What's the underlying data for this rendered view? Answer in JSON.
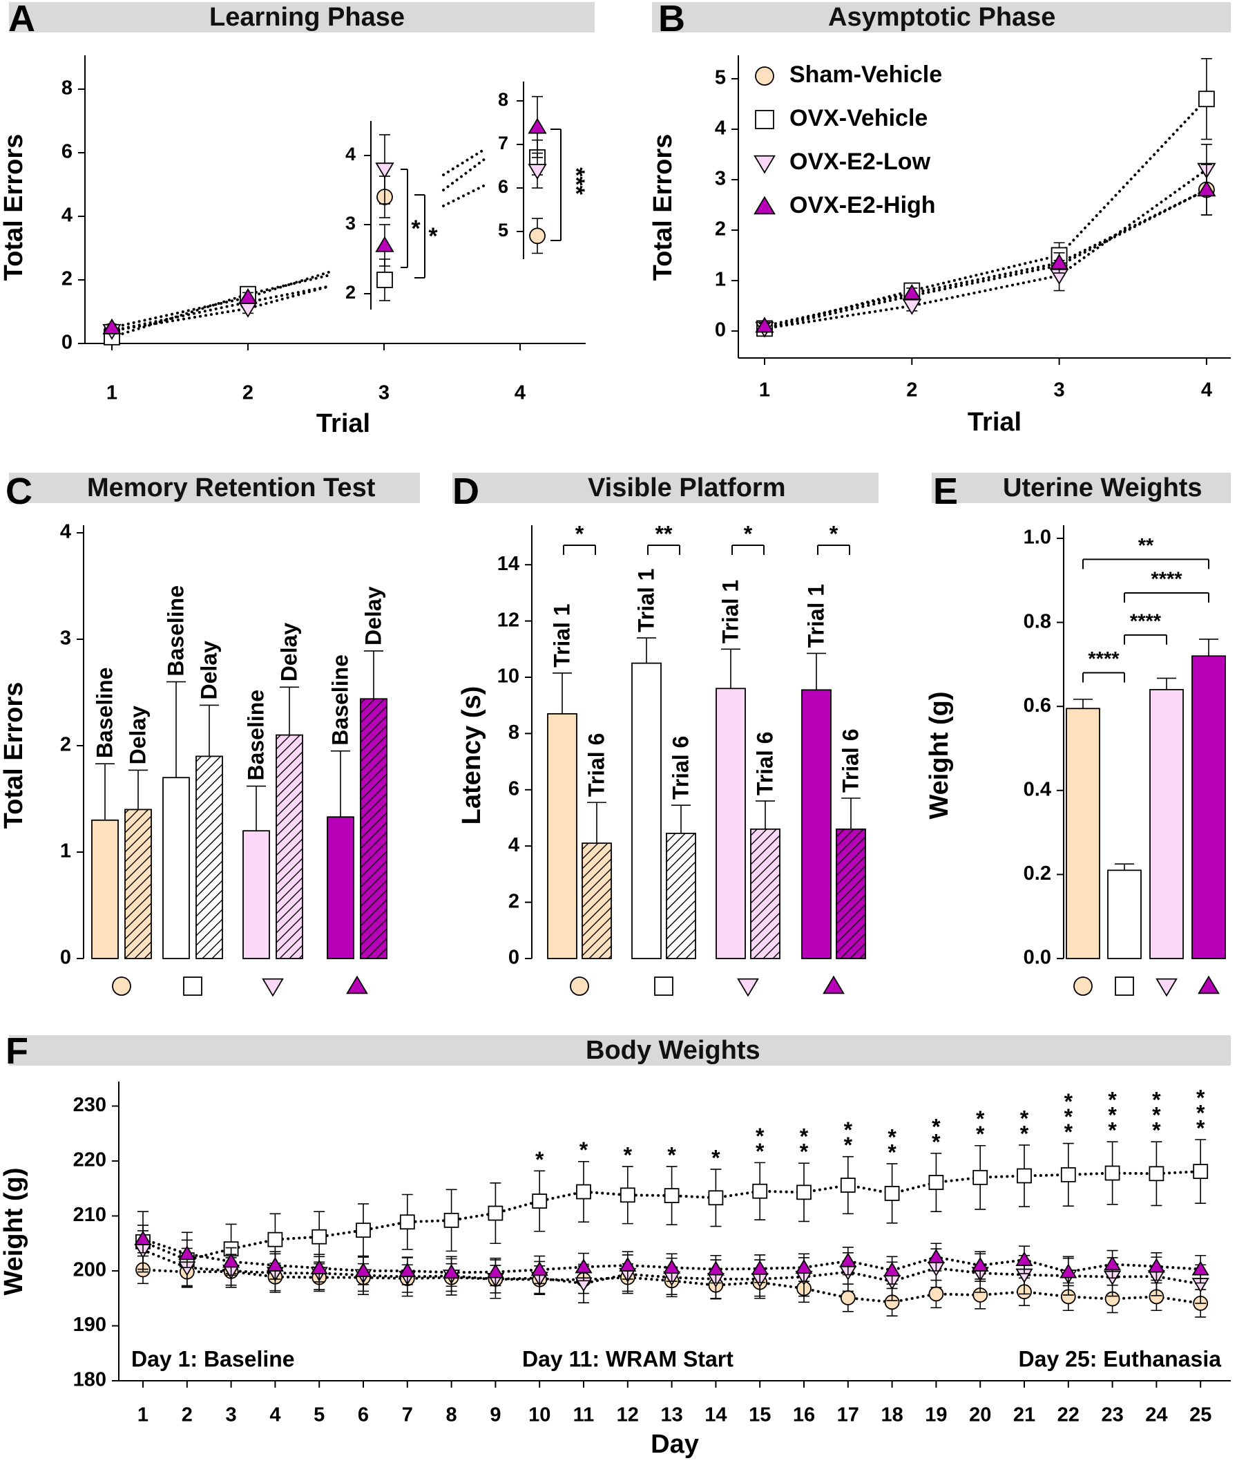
{
  "colors": {
    "sham": "#fde0bd",
    "ovx": "#ffffff",
    "low": "#fbd8f8",
    "high": "#b900b9",
    "header_bg": "#d9d9d9",
    "ink": "#000000"
  },
  "legend": {
    "items": [
      {
        "label": "Sham-Vehicle",
        "marker": "circle"
      },
      {
        "label": "OVX-Vehicle",
        "marker": "square"
      },
      {
        "label": "OVX-E2-Low",
        "marker": "triangle-down"
      },
      {
        "label": "OVX-E2-High",
        "marker": "triangle-up"
      }
    ]
  },
  "panels": {
    "a": {
      "letter": "A",
      "title": "Learning Phase"
    },
    "b": {
      "letter": "B",
      "title": "Asymptotic Phase"
    },
    "c": {
      "letter": "C",
      "title": "Memory Retention Test"
    },
    "d": {
      "letter": "D",
      "title": "Visible Platform"
    },
    "e": {
      "letter": "E",
      "title": "Uterine Weights"
    },
    "f": {
      "letter": "F",
      "title": "Body Weights"
    }
  },
  "chart_data": [
    {
      "id": "A",
      "type": "line",
      "title": "Learning Phase",
      "xlabel": "Trial",
      "ylabel": "Total Errors",
      "x": [
        1,
        2,
        3,
        4
      ],
      "ylim": [
        0,
        9
      ],
      "yticks": [
        "0",
        "2",
        "4",
        "6",
        "8"
      ],
      "xticks": [
        "1",
        "2",
        "3",
        "4"
      ],
      "series": [
        {
          "name": "Sham-Vehicle",
          "values": [
            0.4,
            1.3,
            3.4,
            4.9
          ],
          "err": [
            0.1,
            0.15,
            0.3,
            0.4
          ]
        },
        {
          "name": "OVX-Vehicle",
          "values": [
            0.2,
            1.55,
            2.2,
            6.7
          ],
          "err": [
            0.1,
            0.15,
            0.3,
            0.4
          ]
        },
        {
          "name": "OVX-E2-Low",
          "values": [
            0.4,
            1.1,
            3.8,
            6.4
          ],
          "err": [
            0.1,
            0.15,
            0.5,
            0.4
          ]
        },
        {
          "name": "OVX-E2-High",
          "values": [
            0.5,
            1.45,
            2.7,
            7.4
          ],
          "err": [
            0.1,
            0.15,
            0.3,
            0.7
          ]
        }
      ],
      "inset_trial3": {
        "yticks": [
          "2",
          "3",
          "4"
        ],
        "ylim": [
          1.8,
          4.4
        ],
        "annotations": [
          "*",
          "*"
        ]
      },
      "inset_trial4": {
        "yticks": [
          "5",
          "6",
          "7",
          "8"
        ],
        "ylim": [
          4.5,
          8.3
        ],
        "annotations": [
          "***"
        ]
      }
    },
    {
      "id": "B",
      "type": "line",
      "title": "Asymptotic Phase",
      "xlabel": "Trial",
      "ylabel": "Total Errors",
      "x": [
        1,
        2,
        3,
        4
      ],
      "ylim": [
        0,
        5.5
      ],
      "yticks": [
        "0",
        "1",
        "2",
        "3",
        "4",
        "5"
      ],
      "xticks": [
        "1",
        "2",
        "3",
        "4"
      ],
      "series": [
        {
          "name": "Sham-Vehicle",
          "values": [
            0.05,
            0.7,
            1.3,
            2.8
          ],
          "err": [
            0.05,
            0.1,
            0.2,
            0.5
          ]
        },
        {
          "name": "OVX-Vehicle",
          "values": [
            0.05,
            0.8,
            1.5,
            4.6
          ],
          "err": [
            0.05,
            0.1,
            0.25,
            0.8
          ]
        },
        {
          "name": "OVX-E2-Low",
          "values": [
            0.05,
            0.5,
            1.1,
            3.2
          ],
          "err": [
            0.05,
            0.1,
            0.3,
            0.5
          ]
        },
        {
          "name": "OVX-E2-High",
          "values": [
            0.1,
            0.75,
            1.35,
            2.8
          ],
          "err": [
            0.05,
            0.1,
            0.2,
            0.5
          ]
        }
      ]
    },
    {
      "id": "C",
      "type": "bar",
      "title": "Memory Retention Test",
      "ylabel": "Total Errors",
      "ylim": [
        0,
        4
      ],
      "yticks": [
        "0",
        "1",
        "2",
        "3",
        "4"
      ],
      "bar_labels": [
        "Baseline",
        "Delay"
      ],
      "groups": [
        {
          "name": "Sham-Vehicle",
          "values": [
            1.3,
            1.4
          ],
          "err": [
            0.53,
            0.37
          ]
        },
        {
          "name": "OVX-Vehicle",
          "values": [
            1.7,
            1.9
          ],
          "err": [
            0.9,
            0.48
          ]
        },
        {
          "name": "OVX-E2-Low",
          "values": [
            1.2,
            2.1
          ],
          "err": [
            0.42,
            0.45
          ]
        },
        {
          "name": "OVX-E2-High",
          "values": [
            1.33,
            2.44
          ],
          "err": [
            0.62,
            0.45
          ]
        }
      ]
    },
    {
      "id": "D",
      "type": "bar",
      "title": "Visible Platform",
      "ylabel": "Latency (s)",
      "ylim": [
        0,
        15.5
      ],
      "yticks": [
        "0",
        "2",
        "4",
        "6",
        "8",
        "10",
        "12",
        "14"
      ],
      "bar_labels": [
        "Trial 1",
        "Trial 6"
      ],
      "groups": [
        {
          "name": "Sham-Vehicle",
          "values": [
            8.7,
            4.1
          ],
          "err": [
            1.45,
            1.45
          ],
          "sig": "*"
        },
        {
          "name": "OVX-Vehicle",
          "values": [
            10.5,
            4.45
          ],
          "err": [
            0.9,
            1.0
          ],
          "sig": "**"
        },
        {
          "name": "OVX-E2-Low",
          "values": [
            9.6,
            4.6
          ],
          "err": [
            1.4,
            1.0
          ],
          "sig": "*"
        },
        {
          "name": "OVX-E2-High",
          "values": [
            9.55,
            4.6
          ],
          "err": [
            1.3,
            1.1
          ],
          "sig": "*"
        }
      ]
    },
    {
      "id": "E",
      "type": "bar",
      "title": "Uterine Weights",
      "ylabel": "Weight (g)",
      "ylim": [
        0,
        1.03
      ],
      "yticks": [
        "0.0",
        "0.2",
        "0.4",
        "0.6",
        "0.8",
        "1.0"
      ],
      "groups": [
        {
          "name": "Sham-Vehicle",
          "value": 0.595,
          "err": 0.022
        },
        {
          "name": "OVX-Vehicle",
          "value": 0.21,
          "err": 0.015
        },
        {
          "name": "OVX-E2-Low",
          "value": 0.64,
          "err": 0.027
        },
        {
          "name": "OVX-E2-High",
          "value": 0.72,
          "err": 0.04
        }
      ],
      "comparisons": [
        {
          "from": 0,
          "to": 1,
          "y": 0.68,
          "label": "****"
        },
        {
          "from": 1,
          "to": 2,
          "y": 0.77,
          "label": "****"
        },
        {
          "from": 1,
          "to": 3,
          "y": 0.87,
          "label": "****"
        },
        {
          "from": 0,
          "to": 3,
          "y": 0.95,
          "label": "**"
        }
      ]
    },
    {
      "id": "F",
      "type": "line",
      "title": "Body Weights",
      "xlabel": "Day",
      "ylabel": "Weight (g)",
      "x": [
        1,
        2,
        3,
        4,
        5,
        6,
        7,
        8,
        9,
        10,
        11,
        12,
        13,
        14,
        15,
        16,
        17,
        18,
        19,
        20,
        21,
        22,
        23,
        24,
        25
      ],
      "ylim": [
        180,
        232
      ],
      "yticks": [
        "180",
        "190",
        "200",
        "210",
        "220",
        "230"
      ],
      "annotations": [
        "Day 1: Baseline",
        "Day 11: WRAM Start",
        "Day 25: Euthanasia"
      ],
      "significance": [
        "",
        "",
        "",
        "",
        "",
        "",
        "",
        "",
        "",
        "*",
        "*",
        "*",
        "*",
        "*",
        "**",
        "**",
        "**",
        "**",
        "**",
        "**",
        "**",
        "***",
        "***",
        "***",
        "***"
      ],
      "series": [
        {
          "name": "Sham-Vehicle",
          "values": [
            200.2,
            199.8,
            199.9,
            198.9,
            198.8,
            198.8,
            198.6,
            198.8,
            198.5,
            198.4,
            198.4,
            198.8,
            198.2,
            197.4,
            197.9,
            196.8,
            195.1,
            194.3,
            195.8,
            195.6,
            196.2,
            195.3,
            194.9,
            195.3,
            194.1
          ],
          "err": [
            2.5,
            2.5,
            2.5,
            2.5,
            2.5,
            2.5,
            2.5,
            2.5,
            2.5,
            2.5,
            2.5,
            2.5,
            2.5,
            2.5,
            2.5,
            2.5,
            2.5,
            2.5,
            2.5,
            2.5,
            2.5,
            2.5,
            2.5,
            2.5,
            2.5
          ]
        },
        {
          "name": "OVX-Vehicle",
          "values": [
            205.3,
            202.0,
            204.0,
            205.7,
            206.2,
            207.4,
            208.9,
            209.2,
            210.5,
            212.7,
            214.4,
            213.8,
            213.7,
            213.3,
            214.5,
            214.3,
            215.6,
            214.1,
            216.1,
            217.0,
            217.3,
            217.5,
            217.8,
            217.7,
            218.1
          ],
          "err": [
            5.5,
            5.0,
            4.5,
            4.7,
            4.6,
            4.8,
            5.0,
            5.6,
            5.5,
            5.5,
            5.5,
            5.2,
            5.3,
            5.2,
            5.2,
            5.3,
            5.2,
            5.4,
            5.3,
            5.8,
            5.6,
            5.7,
            5.7,
            5.8,
            5.8
          ]
        },
        {
          "name": "OVX-E2-Low",
          "values": [
            203.8,
            200.6,
            200.0,
            199.6,
            199.6,
            199.2,
            198.9,
            199.1,
            198.5,
            198.7,
            197.7,
            199.4,
            198.8,
            198.5,
            198.5,
            198.9,
            199.8,
            198.1,
            200.5,
            199.6,
            199.3,
            199.1,
            198.9,
            199.0,
            197.6
          ],
          "err": [
            3.5,
            3.5,
            3.0,
            3.5,
            3.0,
            3.5,
            3.5,
            3.5,
            3.5,
            3.0,
            3.5,
            3.5,
            3.5,
            3.5,
            3.5,
            3.5,
            3.5,
            3.5,
            3.5,
            3.5,
            3.5,
            3.5,
            3.5,
            3.5,
            3.5
          ]
        },
        {
          "name": "OVX-E2-High",
          "values": [
            205.8,
            203.1,
            201.7,
            201.0,
            200.5,
            200.0,
            200.0,
            199.7,
            199.8,
            200.2,
            200.7,
            201.0,
            200.6,
            200.3,
            200.4,
            200.6,
            201.8,
            200.1,
            202.5,
            201.0,
            202.0,
            199.8,
            201.2,
            200.8,
            200.3
          ],
          "err": [
            2.5,
            2.5,
            2.5,
            2.5,
            2.5,
            2.5,
            2.5,
            2.5,
            2.5,
            2.5,
            2.5,
            2.5,
            2.5,
            2.5,
            2.5,
            2.5,
            2.5,
            2.5,
            2.5,
            2.5,
            2.5,
            2.5,
            2.5,
            2.5,
            2.5
          ]
        }
      ]
    }
  ]
}
